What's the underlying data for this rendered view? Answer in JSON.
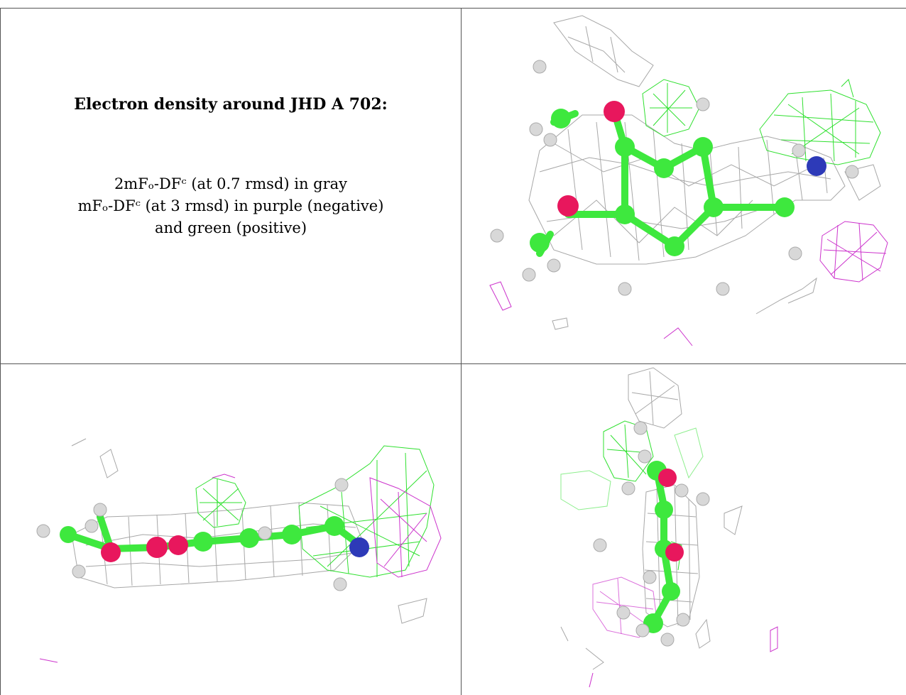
{
  "title": "Electron density around JHD A 702:",
  "legend": {
    "line1": "2mFₒ-DFᶜ (at 0.7 rmsd) in gray",
    "line2": "mFₒ-DFᶜ (at 3 rmsd) in purple (negative)",
    "line3": "and green (positive)"
  },
  "colors": {
    "carbon": "#3ee83e",
    "oxygen": "#e8175d",
    "nitrogen": "#2d3ab8",
    "hydrogen": "#d8d8d8",
    "mesh_2fofc": "#8a8a8a",
    "mesh_positive": "#2fe02f",
    "mesh_negative": "#cc33cc"
  }
}
